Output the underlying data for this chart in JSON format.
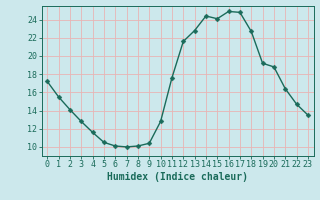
{
  "x": [
    0,
    1,
    2,
    3,
    4,
    5,
    6,
    7,
    8,
    9,
    10,
    11,
    12,
    13,
    14,
    15,
    16,
    17,
    18,
    19,
    20,
    21,
    22,
    23
  ],
  "y": [
    17.2,
    15.5,
    14.1,
    12.8,
    11.6,
    10.5,
    10.1,
    10.0,
    10.1,
    10.4,
    12.8,
    17.6,
    21.6,
    22.8,
    24.4,
    24.1,
    24.9,
    24.8,
    22.7,
    19.2,
    18.8,
    16.4,
    14.7,
    13.5
  ],
  "line_color": "#1a6b5a",
  "marker": "D",
  "markersize": 2.5,
  "linewidth": 1.0,
  "xlabel": "Humidex (Indice chaleur)",
  "xlim": [
    -0.5,
    23.5
  ],
  "ylim": [
    9.0,
    25.5
  ],
  "yticks": [
    10,
    12,
    14,
    16,
    18,
    20,
    22,
    24
  ],
  "xticks": [
    0,
    1,
    2,
    3,
    4,
    5,
    6,
    7,
    8,
    9,
    10,
    11,
    12,
    13,
    14,
    15,
    16,
    17,
    18,
    19,
    20,
    21,
    22,
    23
  ],
  "bg_color": "#cce8ec",
  "grid_color": "#e8b4b4",
  "label_color": "#1a6b5a",
  "xlabel_fontsize": 7,
  "tick_fontsize": 6
}
